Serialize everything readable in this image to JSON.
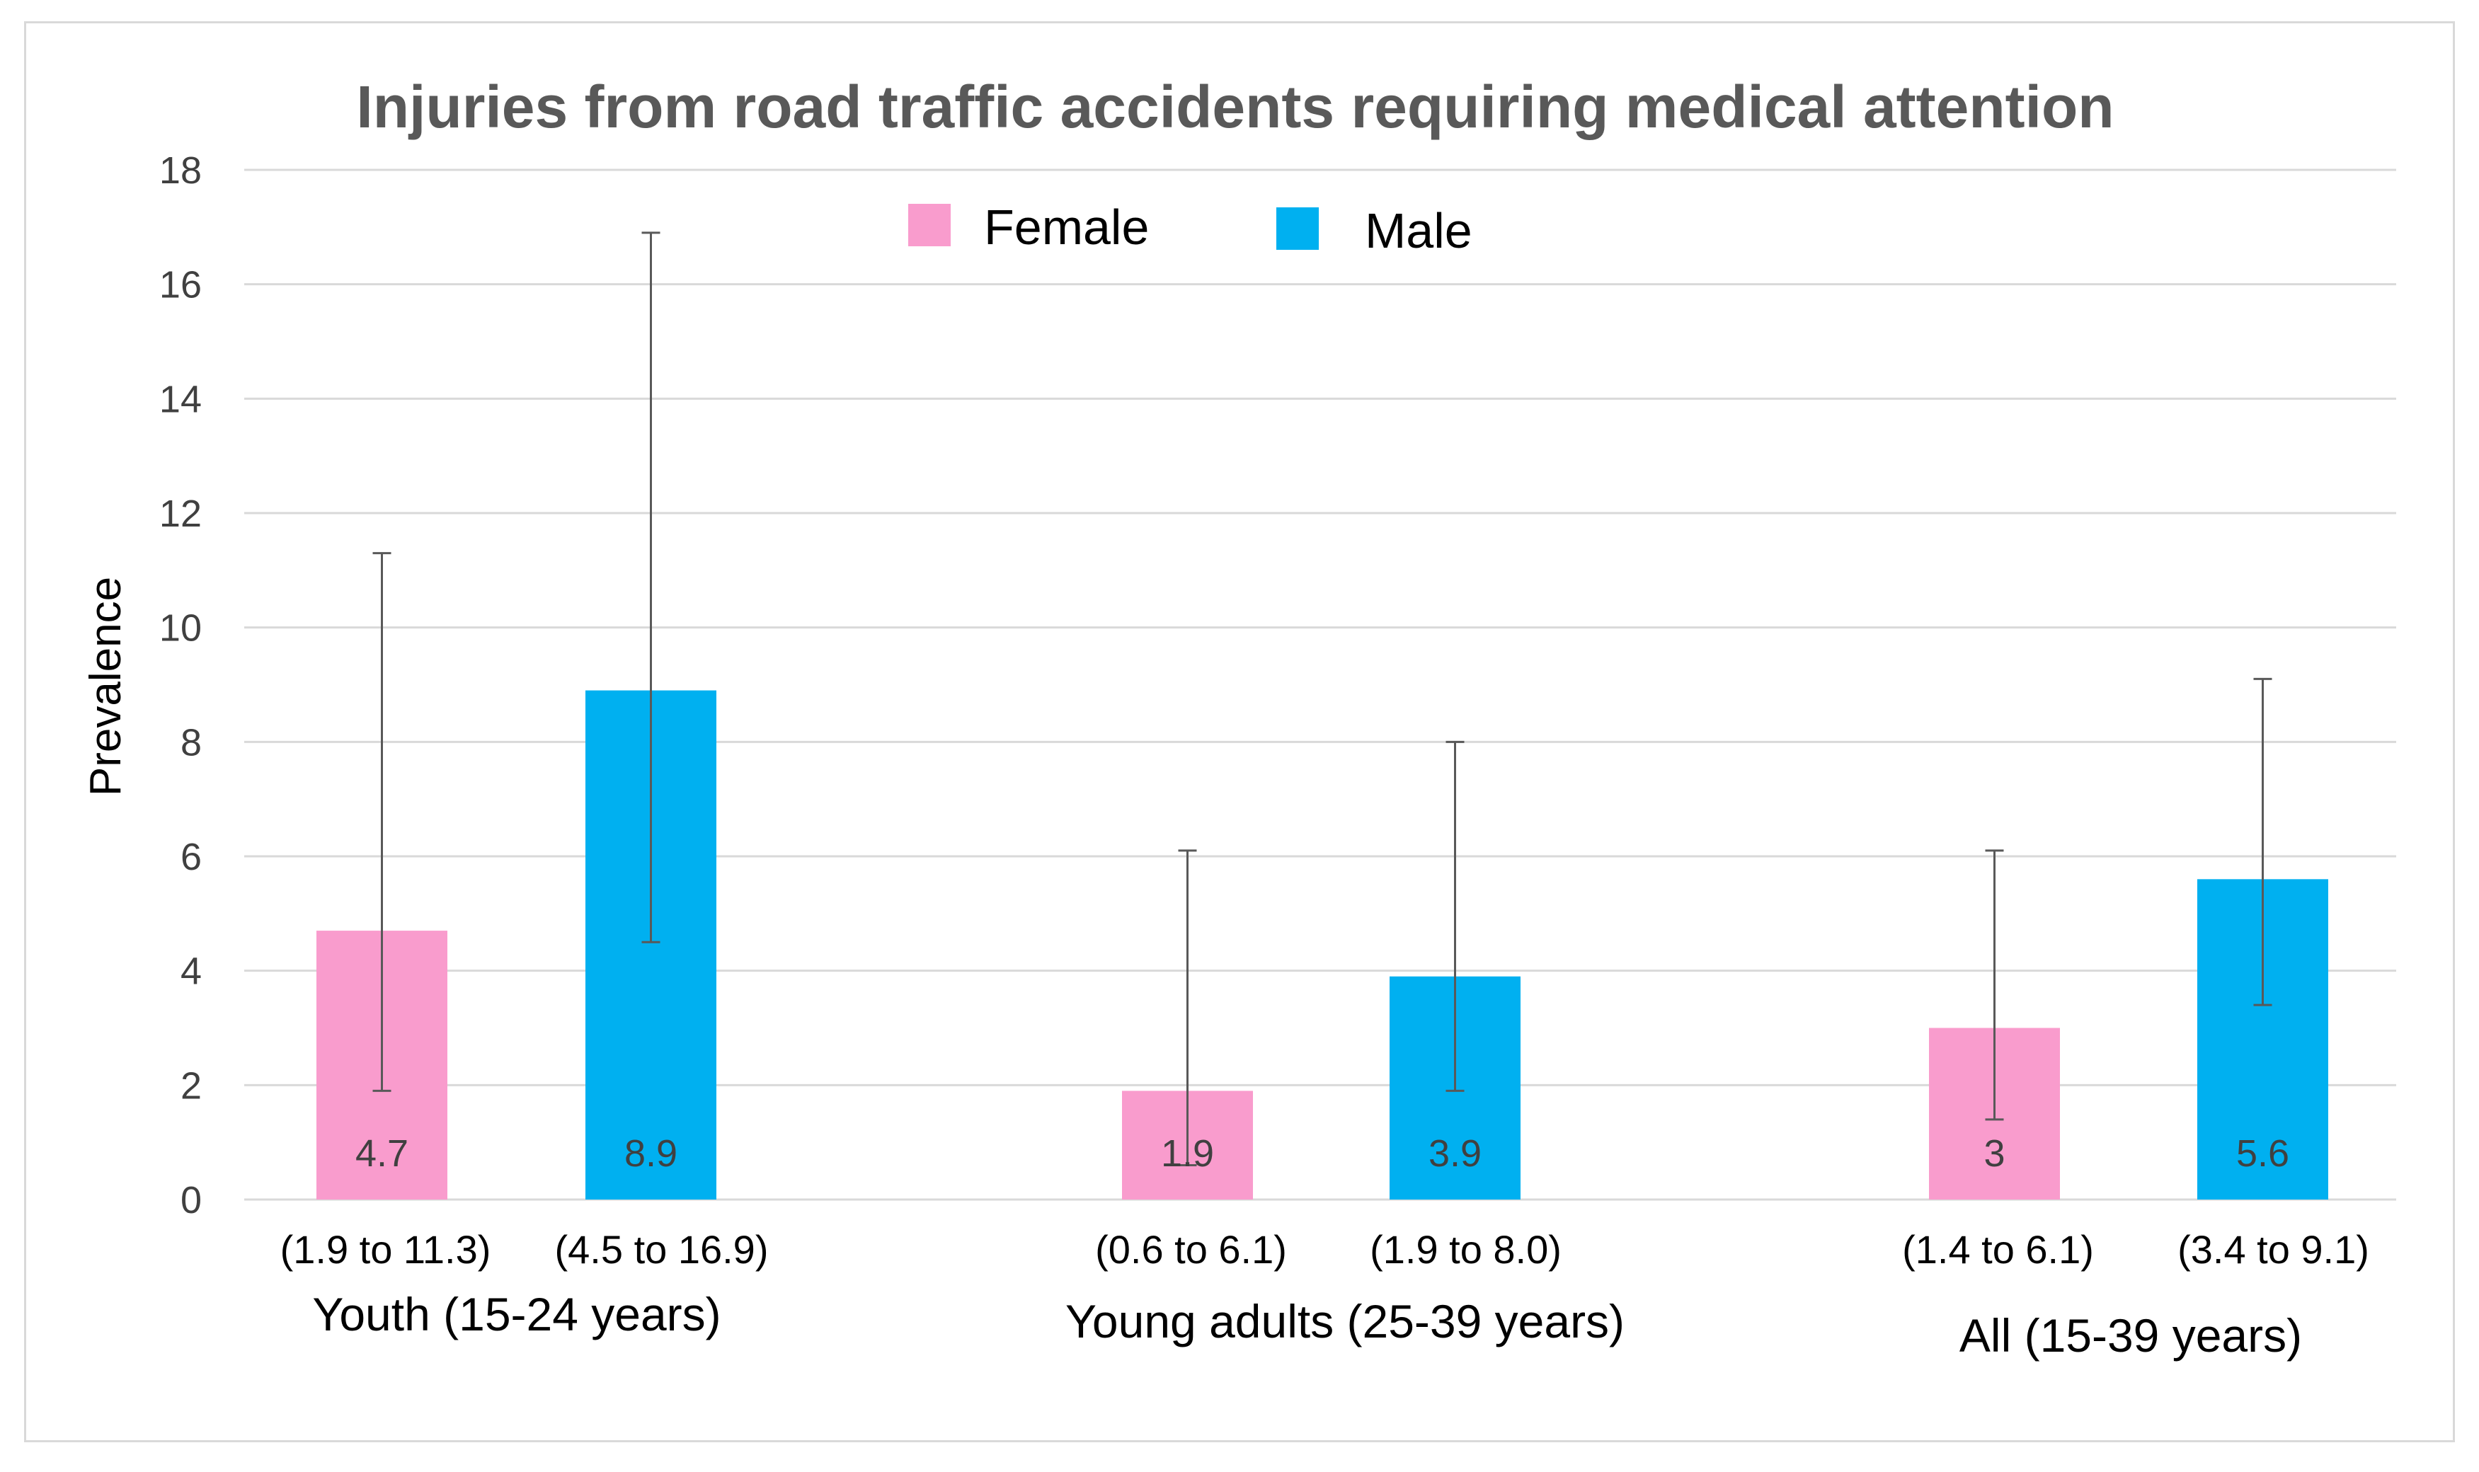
{
  "chart_data": {
    "type": "bar",
    "title": "Injuries from road traffic accidents requiring medical attention",
    "ylabel": "Prevalence",
    "xlabel": "",
    "ylim": [
      0,
      18
    ],
    "yticks": [
      0,
      2,
      4,
      6,
      8,
      10,
      12,
      14,
      16,
      18
    ],
    "categories": [
      "Youth (15-24 years)",
      "Young adults (25-39 years)",
      "All (15-39 years)"
    ],
    "legend_position": "top-center",
    "series": [
      {
        "name": "Female",
        "color": "#f99ccd",
        "values": [
          4.7,
          1.9,
          3
        ],
        "value_labels": [
          "4.7",
          "1.9",
          "3"
        ],
        "ci_low": [
          1.9,
          0.6,
          1.4
        ],
        "ci_high": [
          11.3,
          6.1,
          6.1
        ],
        "ci_labels": [
          "(1.9 to 11.3)",
          "(0.6 to 6.1)",
          "(1.4 to 6.1)"
        ]
      },
      {
        "name": "Male",
        "color": "#00b0f0",
        "values": [
          8.9,
          3.9,
          5.6
        ],
        "value_labels": [
          "8.9",
          "3.9",
          "5.6"
        ],
        "ci_low": [
          4.5,
          1.9,
          3.4
        ],
        "ci_high": [
          16.9,
          8.0,
          9.1
        ],
        "ci_labels": [
          "(4.5 to 16.9)",
          "(1.9 to 8.0)",
          "(3.4 to 9.1)"
        ]
      }
    ],
    "grid": true,
    "colors": {
      "gridline": "#d9d9d9",
      "errorbar": "#595959"
    }
  }
}
